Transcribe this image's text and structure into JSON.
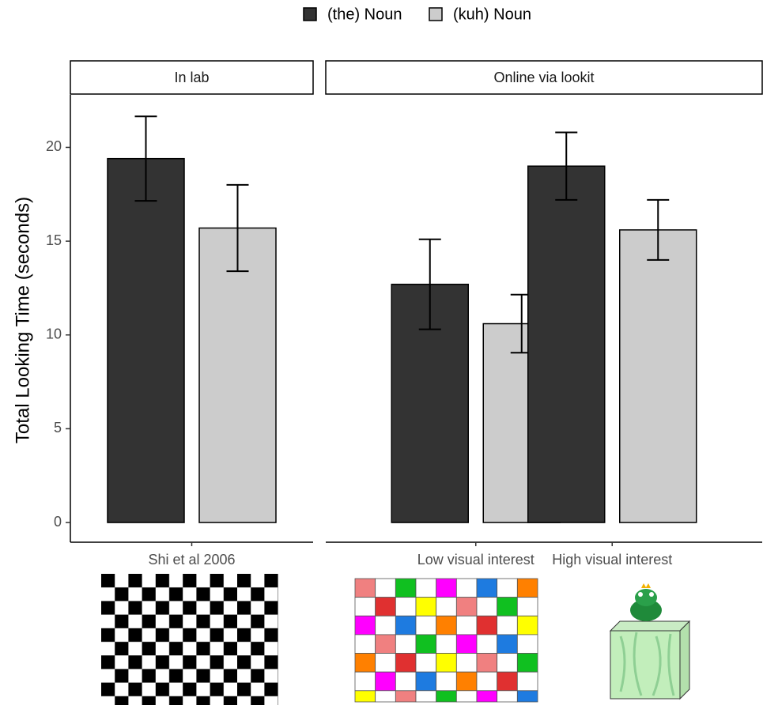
{
  "chart_data": {
    "type": "bar",
    "y_label": "Total Looking Time (seconds)",
    "facets": [
      {
        "title": "In lab",
        "categories": [
          "Shi et al 2006"
        ]
      },
      {
        "title": "Online via lookit",
        "categories": [
          "Low visual interest",
          "High visual interest"
        ]
      }
    ],
    "series": [
      {
        "name": "(the) Noun",
        "color": "#333333",
        "values": [
          19.4,
          12.7,
          19.0
        ],
        "errors": [
          2.25,
          2.4,
          1.8
        ]
      },
      {
        "name": "(kuh) Noun",
        "color": "#cccccc",
        "values": [
          15.7,
          10.6,
          15.6
        ],
        "errors": [
          2.3,
          1.55,
          1.6
        ]
      }
    ],
    "ylim": [
      -1.05,
      22.8
    ],
    "yticks": [
      0,
      5,
      10,
      15,
      20
    ]
  }
}
